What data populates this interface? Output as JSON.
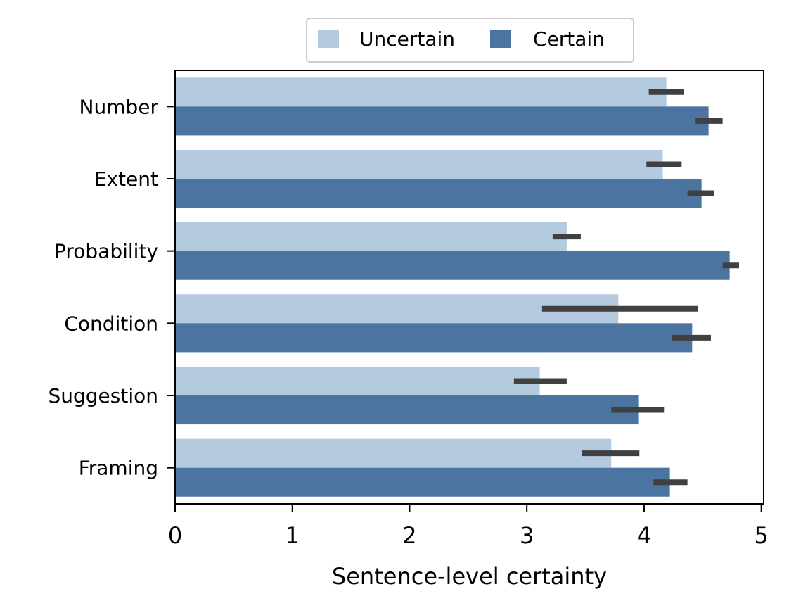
{
  "chart_data": {
    "type": "bar",
    "orientation": "horizontal",
    "categories": [
      "Number",
      "Extent",
      "Probability",
      "Condition",
      "Suggestion",
      "Framing"
    ],
    "series": [
      {
        "name": "Uncertain",
        "color": "#b3cadf",
        "values": [
          4.19,
          4.16,
          3.34,
          3.78,
          3.11,
          3.72
        ],
        "error_low": [
          4.04,
          4.02,
          3.22,
          3.13,
          2.89,
          3.47
        ],
        "error_high": [
          4.34,
          4.32,
          3.46,
          4.46,
          3.34,
          3.96
        ]
      },
      {
        "name": "Certain",
        "color": "#4b74a0",
        "values": [
          4.55,
          4.49,
          4.73,
          4.41,
          3.95,
          4.22
        ],
        "error_low": [
          4.44,
          4.37,
          4.67,
          4.24,
          3.72,
          4.08
        ],
        "error_high": [
          4.67,
          4.6,
          4.81,
          4.57,
          4.17,
          4.37
        ]
      }
    ],
    "xlabel": "Sentence-level certainty",
    "ylabel": "",
    "xlim": [
      0,
      5.02
    ],
    "xticks": [
      "0",
      "1",
      "2",
      "3",
      "4",
      "5"
    ],
    "error_bar_color": "#404040",
    "legend_position": "top-center",
    "grid": false
  }
}
